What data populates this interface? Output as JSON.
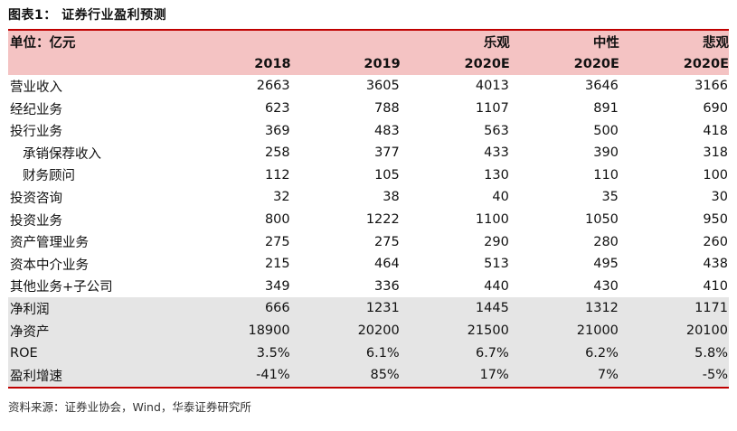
{
  "title": "图表1： 证券行业盈利预测",
  "header": {
    "unit_label": "单位：亿元",
    "scenarios": [
      "",
      "",
      "乐观",
      "中性",
      "悲观"
    ],
    "years": [
      "2018",
      "2019",
      "2020E",
      "2020E",
      "2020E"
    ]
  },
  "rows": [
    {
      "label": "营业收入",
      "values": [
        "2663",
        "3605",
        "4013",
        "3646",
        "3166"
      ]
    },
    {
      "label": "经纪业务",
      "values": [
        "623",
        "788",
        "1107",
        "891",
        "690"
      ]
    },
    {
      "label": "投行业务",
      "values": [
        "369",
        "483",
        "563",
        "500",
        "418"
      ]
    },
    {
      "label": "承销保荐收入",
      "values": [
        "258",
        "377",
        "433",
        "390",
        "318"
      ]
    },
    {
      "label": "财务顾问",
      "values": [
        "112",
        "105",
        "130",
        "110",
        "100"
      ]
    },
    {
      "label": "投资咨询",
      "values": [
        "32",
        "38",
        "40",
        "35",
        "30"
      ]
    },
    {
      "label": "投资业务",
      "values": [
        "800",
        "1222",
        "1100",
        "1050",
        "950"
      ]
    },
    {
      "label": "资产管理业务",
      "values": [
        "275",
        "275",
        "290",
        "280",
        "260"
      ]
    },
    {
      "label": "资本中介业务",
      "values": [
        "215",
        "464",
        "513",
        "495",
        "438"
      ]
    },
    {
      "label": "其他业务+子公司",
      "values": [
        "349",
        "336",
        "440",
        "430",
        "410"
      ]
    }
  ],
  "summary_rows": [
    {
      "label": "净利润",
      "values": [
        "666",
        "1231",
        "1445",
        "1312",
        "1171"
      ]
    },
    {
      "label": "净资产",
      "values": [
        "18900",
        "20200",
        "21500",
        "21000",
        "20100"
      ]
    },
    {
      "label": "ROE",
      "values": [
        "3.5%",
        "6.1%",
        "6.7%",
        "6.2%",
        "5.8%"
      ]
    },
    {
      "label": "盈利增速",
      "values": [
        "-41%",
        "85%",
        "17%",
        "7%",
        "-5%"
      ]
    }
  ],
  "source": "资料来源：证券业协会，Wind，华泰证券研究所"
}
